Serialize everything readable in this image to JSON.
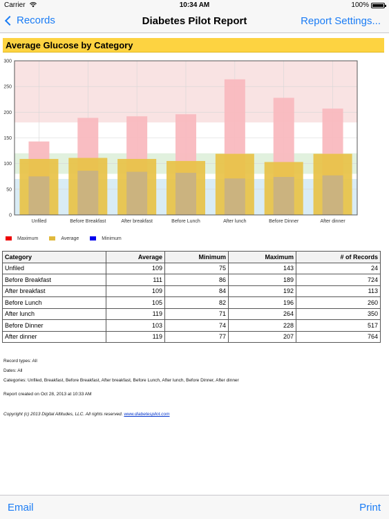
{
  "status_bar": {
    "carrier": "Carrier",
    "time": "10:34 AM",
    "battery": "100%"
  },
  "nav": {
    "back_label": "Records",
    "title": "Diabetes Pilot Report",
    "right_label": "Report Settings..."
  },
  "report": {
    "header": "Average Glucose by Category"
  },
  "colors": {
    "header_bg": "#fdd341",
    "avg_bar": "#e8c246",
    "max_bar": "#f9b9bf",
    "min_bar": "#c8b184",
    "zone_high": "#f9e3e3",
    "zone_target": "#e1f1de",
    "zone_low": "#d9ecf5",
    "link": "#1a7cf5"
  },
  "chart_data": {
    "type": "bar",
    "categories": [
      "Unfiled",
      "Before Breakfast",
      "After breakfast",
      "Before Lunch",
      "After lunch",
      "Before Dinner",
      "After dinner"
    ],
    "series": [
      {
        "name": "Maximum",
        "values": [
          143,
          189,
          192,
          196,
          264,
          228,
          207
        ]
      },
      {
        "name": "Average",
        "values": [
          109,
          111,
          109,
          105,
          119,
          103,
          119
        ]
      },
      {
        "name": "Minimum",
        "values": [
          75,
          86,
          84,
          82,
          71,
          74,
          77
        ]
      }
    ],
    "ylim": [
      0,
      300
    ],
    "yticks": [
      0,
      50,
      100,
      150,
      200,
      250,
      300
    ],
    "bands": {
      "high_above": 180,
      "target": [
        80,
        120
      ],
      "low_below": 70
    },
    "grid": true,
    "legend": [
      {
        "label": "Maximum",
        "color": "#ee0000"
      },
      {
        "label": "Average",
        "color": "#e0b93c"
      },
      {
        "label": "Minimum",
        "color": "#0000ee"
      }
    ],
    "legend_position": "bottom-left"
  },
  "table": {
    "headers": [
      "Category",
      "Average",
      "Minimum",
      "Maximum",
      "# of Records"
    ],
    "rows": [
      [
        "Unfiled",
        "109",
        "75",
        "143",
        "24"
      ],
      [
        "Before Breakfast",
        "111",
        "86",
        "189",
        "724"
      ],
      [
        "After breakfast",
        "109",
        "84",
        "192",
        "113"
      ],
      [
        "Before Lunch",
        "105",
        "82",
        "196",
        "260"
      ],
      [
        "After lunch",
        "119",
        "71",
        "264",
        "350"
      ],
      [
        "Before Dinner",
        "103",
        "74",
        "228",
        "517"
      ],
      [
        "After dinner",
        "119",
        "77",
        "207",
        "764"
      ]
    ]
  },
  "notes": {
    "record_types": "Record types: All",
    "dates": "Dates: All",
    "categories": "Categories: Unfiled, Breakfast, Before Breakfast, After breakfast, Before Lunch, After lunch, Before Dinner, After dinner",
    "created": "Report created on Oct 28, 2013 at 10:33 AM"
  },
  "copyright": {
    "text": "Copyright (c) 2013 Digital Altitudes, LLC. All rights reserved.",
    "link": "www.diabetespilot.com"
  },
  "toolbar": {
    "left_label": "Email",
    "right_label": "Print"
  }
}
